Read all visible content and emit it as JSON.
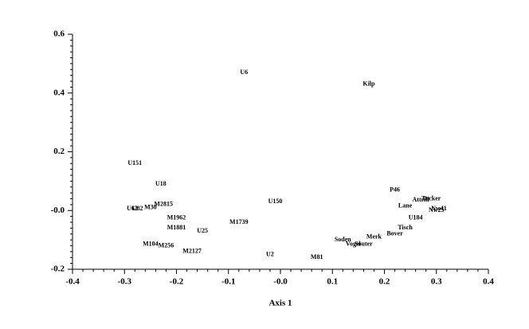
{
  "chart_data": {
    "type": "scatter",
    "x_label": "Axis 1",
    "xlim": [
      -0.4,
      0.4
    ],
    "ylim": [
      -0.2,
      0.6
    ],
    "xticks": [
      -0.4,
      -0.3,
      -0.2,
      -0.1,
      {
        "value": 0,
        "label": "-0.0"
      },
      0.1,
      0.2,
      0.3,
      0.4
    ],
    "yticks": [
      -0.2,
      {
        "value": 0,
        "label": "-0.0"
      },
      0.2,
      0.4,
      0.6
    ],
    "color": "#000000",
    "points": [
      {
        "label": "U6",
        "x": -0.07,
        "y": 0.47
      },
      {
        "label": "Kilp",
        "x": 0.17,
        "y": 0.43
      },
      {
        "label": "U151",
        "x": -0.28,
        "y": 0.16
      },
      {
        "label": "U18",
        "x": -0.23,
        "y": 0.09
      },
      {
        "label": "U150",
        "x": -0.01,
        "y": 0.03
      },
      {
        "label": "P46",
        "x": 0.22,
        "y": 0.07
      },
      {
        "label": "Attrill",
        "x": 0.27,
        "y": 0.035
      },
      {
        "label": "Tucker",
        "x": 0.29,
        "y": 0.04
      },
      {
        "label": "Lane",
        "x": 0.24,
        "y": 0.015
      },
      {
        "label": "U62",
        "x": -0.285,
        "y": 0.005
      },
      {
        "label": "U82",
        "x": -0.275,
        "y": 0.005
      },
      {
        "label": "M30",
        "x": -0.25,
        "y": 0.01
      },
      {
        "label": "M2815",
        "x": -0.225,
        "y": 0.02
      },
      {
        "label": "Nw41",
        "x": 0.305,
        "y": 0.005
      },
      {
        "label": "Nw25",
        "x": 0.3,
        "y": 0
      },
      {
        "label": "M1962",
        "x": -0.2,
        "y": -0.025
      },
      {
        "label": "U184",
        "x": 0.26,
        "y": -0.025
      },
      {
        "label": "M1739",
        "x": -0.08,
        "y": -0.04
      },
      {
        "label": "M1881",
        "x": -0.2,
        "y": -0.06
      },
      {
        "label": "Tisch",
        "x": 0.24,
        "y": -0.06
      },
      {
        "label": "U25",
        "x": -0.15,
        "y": -0.07
      },
      {
        "label": "Bover",
        "x": 0.22,
        "y": -0.08
      },
      {
        "label": "Merk",
        "x": 0.18,
        "y": -0.09
      },
      {
        "label": "Soden",
        "x": 0.12,
        "y": -0.1
      },
      {
        "label": "Vogel",
        "x": 0.14,
        "y": -0.115
      },
      {
        "label": "Souter",
        "x": 0.16,
        "y": -0.115
      },
      {
        "label": "M104",
        "x": -0.25,
        "y": -0.115
      },
      {
        "label": "M256",
        "x": -0.22,
        "y": -0.12
      },
      {
        "label": "M2127",
        "x": -0.17,
        "y": -0.14
      },
      {
        "label": "U2",
        "x": -0.02,
        "y": -0.15
      },
      {
        "label": "M81",
        "x": 0.07,
        "y": -0.16
      }
    ]
  }
}
